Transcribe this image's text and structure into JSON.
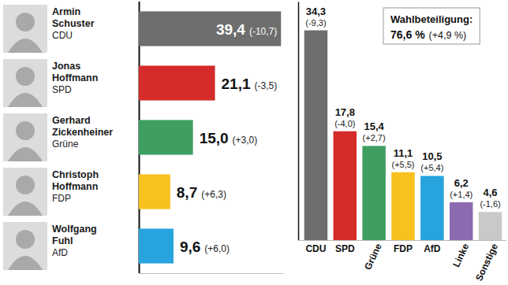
{
  "chart_data": [
    {
      "type": "bar",
      "orientation": "horizontal",
      "categories": [
        "Armin Schuster",
        "Jonas Hoffmann",
        "Gerhard Zickenheiner",
        "Christoph Hoffmann",
        "Wolfgang Fuhl"
      ],
      "parties": [
        "CDU",
        "SPD",
        "Grüne",
        "FDP",
        "AfD"
      ],
      "values": [
        39.4,
        21.1,
        15.0,
        8.7,
        9.6
      ],
      "value_labels": [
        "39,4",
        "21,1",
        "15,0",
        "8,7",
        "9,6"
      ],
      "change_labels": [
        "(-10,7)",
        "(-3,5)",
        "(+3,0)",
        "(+6,3)",
        "(+6,0)"
      ],
      "colors": [
        "#6e6e6e",
        "#d52b2b",
        "#3f9f62",
        "#f9c11d",
        "#27a3dd"
      ],
      "xlim": [
        0,
        40
      ],
      "xticks": [
        0
      ],
      "tick_labels": "y",
      "data_labels": true
    },
    {
      "type": "bar",
      "categories": [
        "CDU",
        "SPD",
        "Grüne",
        "FDP",
        "AfD",
        "Linke",
        "Sonstige"
      ],
      "values": [
        34.3,
        17.8,
        15.4,
        11.1,
        10.5,
        6.2,
        4.6
      ],
      "value_labels": [
        "34,3",
        "17,8",
        "15,4",
        "11,1",
        "10,5",
        "6,2",
        "4,6"
      ],
      "change_labels": [
        "(-9,3)",
        "(-4,0)",
        "(+2,7)",
        "(+5,5)",
        "(+5,4)",
        "(+1,4)",
        "(-1,6)"
      ],
      "colors": [
        "#6e6e6e",
        "#d52b2b",
        "#3f9f62",
        "#f9c11d",
        "#27a3dd",
        "#8c6bb1",
        "#c9c9c9"
      ],
      "ylim": [
        0,
        39
      ],
      "yticks": [
        0
      ],
      "tick_labels": "x",
      "data_labels": true,
      "annotations": [
        "Wahlbeteiligung:",
        "76,6 %",
        "(+4,9 %)"
      ]
    }
  ]
}
